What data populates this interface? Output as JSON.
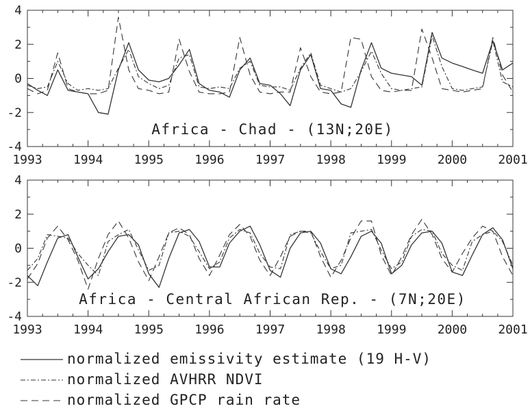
{
  "chart_data": [
    {
      "type": "line",
      "title": "Africa - Chad - (13N;20E)",
      "x_ticks": [
        1993,
        1994,
        1995,
        1996,
        1997,
        1998,
        1999,
        2000,
        2001
      ],
      "y_ticks": [
        -4,
        -2,
        0,
        2,
        4
      ],
      "xlim": [
        1993,
        2001
      ],
      "ylim": [
        -4,
        4
      ],
      "grid": false,
      "series": [
        {
          "name": "normalized emissivity estimate (19 H-V)",
          "style": "solid",
          "x": [
            1993.0,
            1993.17,
            1993.33,
            1993.5,
            1993.67,
            1993.83,
            1994.0,
            1994.17,
            1994.33,
            1994.5,
            1994.67,
            1994.83,
            1995.0,
            1995.17,
            1995.33,
            1995.5,
            1995.67,
            1995.83,
            1996.0,
            1996.17,
            1996.33,
            1996.5,
            1996.67,
            1996.83,
            1997.0,
            1997.17,
            1997.33,
            1997.5,
            1997.67,
            1997.83,
            1998.0,
            1998.17,
            1998.33,
            1998.5,
            1998.67,
            1998.83,
            1999.0,
            1999.17,
            1999.33,
            1999.5,
            1999.67,
            1999.83,
            2000.0,
            2000.17,
            2000.33,
            2000.5,
            2000.67,
            2000.83,
            2001.0
          ],
          "values": [
            -0.3,
            -0.7,
            -1.0,
            0.5,
            -0.7,
            -0.8,
            -0.9,
            -2.0,
            -2.1,
            0.5,
            2.1,
            0.5,
            -0.1,
            -0.2,
            0.0,
            0.8,
            1.7,
            -0.3,
            -0.7,
            -0.8,
            -1.1,
            0.5,
            1.2,
            -0.3,
            -0.4,
            -0.9,
            -1.6,
            0.5,
            1.4,
            -0.6,
            -0.7,
            -1.5,
            -1.7,
            0.5,
            2.1,
            0.6,
            0.3,
            0.2,
            0.1,
            -0.4,
            2.7,
            1.2,
            0.9,
            0.7,
            0.5,
            0.3,
            2.2,
            0.5,
            0.9
          ]
        },
        {
          "name": "normalized AVHRR NDVI",
          "style": "dashdot",
          "x": [
            1993.0,
            1993.17,
            1993.33,
            1993.5,
            1993.67,
            1993.83,
            1994.0,
            1994.17,
            1994.33,
            1994.5,
            1994.67,
            1994.83,
            1995.0,
            1995.17,
            1995.33,
            1995.5,
            1995.67,
            1995.83,
            1996.0,
            1996.17,
            1996.33,
            1996.5,
            1996.67,
            1996.83,
            1997.0,
            1997.17,
            1997.33,
            1997.5,
            1997.67,
            1997.83,
            1998.0,
            1998.17,
            1998.33,
            1998.5,
            1998.67,
            1998.83,
            1999.0,
            1999.17,
            1999.33,
            1999.5,
            1999.67,
            1999.83,
            2000.0,
            2000.17,
            2000.33,
            2000.5,
            2000.67,
            2000.83,
            2001.0
          ],
          "values": [
            -0.4,
            -0.6,
            -0.5,
            1.0,
            -0.3,
            -0.7,
            -0.6,
            -0.7,
            -0.6,
            0.6,
            1.7,
            0.1,
            -0.3,
            -0.6,
            -0.4,
            1.2,
            1.4,
            -0.5,
            -0.6,
            -0.5,
            -0.6,
            0.6,
            1.0,
            -0.4,
            -0.5,
            -0.5,
            -0.7,
            0.6,
            1.5,
            -0.4,
            -0.6,
            -0.8,
            -0.6,
            0.4,
            1.6,
            0.3,
            -0.6,
            -0.7,
            -0.6,
            -0.5,
            2.5,
            0.7,
            -0.6,
            -0.7,
            -0.6,
            -0.5,
            2.2,
            -0.2,
            -0.5
          ]
        },
        {
          "name": "normalized GPCP rain rate",
          "style": "dashed",
          "x": [
            1993.0,
            1993.17,
            1993.33,
            1993.5,
            1993.67,
            1993.83,
            1994.0,
            1994.17,
            1994.33,
            1994.5,
            1994.67,
            1994.83,
            1995.0,
            1995.17,
            1995.33,
            1995.5,
            1995.67,
            1995.83,
            1996.0,
            1996.17,
            1996.33,
            1996.5,
            1996.67,
            1996.83,
            1997.0,
            1997.17,
            1997.33,
            1997.5,
            1997.67,
            1997.83,
            1998.0,
            1998.17,
            1998.33,
            1998.5,
            1998.67,
            1998.83,
            1999.0,
            1999.17,
            1999.33,
            1999.5,
            1999.67,
            1999.83,
            2000.0,
            2000.17,
            2000.33,
            2000.5,
            2000.67,
            2000.83,
            2001.0
          ],
          "values": [
            -0.6,
            -0.9,
            -0.7,
            1.5,
            -0.6,
            -0.8,
            -0.9,
            -0.9,
            -0.7,
            3.6,
            0.5,
            -0.6,
            -0.7,
            -0.9,
            -0.8,
            2.3,
            0.4,
            -0.8,
            -0.9,
            -0.9,
            -0.8,
            2.4,
            0.2,
            -0.8,
            -0.9,
            -0.8,
            -0.8,
            1.8,
            0.1,
            -0.8,
            -0.9,
            -0.8,
            2.4,
            2.3,
            0.1,
            -0.7,
            -0.8,
            -0.7,
            -0.7,
            2.9,
            1.2,
            -0.6,
            -0.7,
            -0.8,
            -0.7,
            -0.6,
            2.4,
            0.2,
            -0.8
          ]
        }
      ]
    },
    {
      "type": "line",
      "title": "Africa - Central African Rep. - (7N;20E)",
      "x_ticks": [
        1993,
        1994,
        1995,
        1996,
        1997,
        1998,
        1999,
        2000,
        2001
      ],
      "y_ticks": [
        -4,
        -2,
        0,
        2,
        4
      ],
      "xlim": [
        1993,
        2001
      ],
      "ylim": [
        -4,
        4
      ],
      "grid": false,
      "series": [
        {
          "name": "normalized emissivity estimate (19 H-V)",
          "style": "solid",
          "x": [
            1993.0,
            1993.17,
            1993.33,
            1993.5,
            1993.67,
            1993.83,
            1994.0,
            1994.17,
            1994.33,
            1994.5,
            1994.67,
            1994.83,
            1995.0,
            1995.17,
            1995.33,
            1995.5,
            1995.67,
            1995.83,
            1996.0,
            1996.17,
            1996.33,
            1996.5,
            1996.67,
            1996.83,
            1997.0,
            1997.17,
            1997.33,
            1997.5,
            1997.67,
            1997.83,
            1998.0,
            1998.17,
            1998.33,
            1998.5,
            1998.67,
            1998.83,
            1999.0,
            1999.17,
            1999.33,
            1999.5,
            1999.67,
            1999.83,
            2000.0,
            2000.17,
            2000.33,
            2000.5,
            2000.67,
            2000.83,
            2001.0
          ],
          "values": [
            -1.6,
            -2.2,
            -0.8,
            0.6,
            0.8,
            -0.5,
            -1.8,
            -1.2,
            -0.2,
            0.7,
            0.8,
            0.2,
            -1.5,
            -2.3,
            -0.6,
            0.9,
            1.1,
            0.4,
            -1.1,
            -1.1,
            0.3,
            1.0,
            1.3,
            0.2,
            -1.3,
            -1.7,
            0.0,
            0.9,
            1.0,
            0.3,
            -1.2,
            -1.5,
            -0.5,
            0.7,
            1.0,
            0.3,
            -1.5,
            -1.0,
            0.2,
            0.9,
            1.0,
            0.3,
            -1.4,
            -1.6,
            -0.4,
            0.8,
            1.2,
            0.5,
            -1.2
          ]
        },
        {
          "name": "normalized AVHRR NDVI",
          "style": "dashdot",
          "x": [
            1993.0,
            1993.17,
            1993.33,
            1993.5,
            1993.67,
            1993.83,
            1994.0,
            1994.17,
            1994.33,
            1994.5,
            1994.67,
            1994.83,
            1995.0,
            1995.17,
            1995.33,
            1995.5,
            1995.67,
            1995.83,
            1996.0,
            1996.17,
            1996.33,
            1996.5,
            1996.67,
            1996.83,
            1997.0,
            1997.17,
            1997.33,
            1997.5,
            1997.67,
            1997.83,
            1998.0,
            1998.17,
            1998.33,
            1998.5,
            1998.67,
            1998.83,
            1999.0,
            1999.17,
            1999.33,
            1999.5,
            1999.67,
            1999.83,
            2000.0,
            2000.17,
            2000.33,
            2000.5,
            2000.67,
            2000.83,
            2001.0
          ],
          "values": [
            -1.3,
            -0.6,
            0.8,
            0.7,
            0.6,
            -0.3,
            -1.0,
            -1.6,
            0.4,
            0.8,
            1.1,
            -0.1,
            -1.3,
            -1.0,
            0.9,
            1.0,
            0.7,
            -0.2,
            -1.2,
            -0.8,
            0.6,
            1.1,
            0.9,
            -0.3,
            -1.1,
            -1.2,
            0.8,
            1.0,
            0.9,
            -0.2,
            -1.2,
            -1.0,
            0.9,
            1.0,
            1.1,
            -0.1,
            -1.2,
            -0.8,
            0.7,
            1.1,
            1.0,
            -0.3,
            -1.0,
            -1.3,
            0.4,
            0.8,
            1.0,
            0.4,
            -1.0
          ]
        },
        {
          "name": "normalized GPCP rain rate",
          "style": "dashed",
          "x": [
            1993.0,
            1993.17,
            1993.33,
            1993.5,
            1993.67,
            1993.83,
            1994.0,
            1994.17,
            1994.33,
            1994.5,
            1994.67,
            1994.83,
            1995.0,
            1995.17,
            1995.33,
            1995.5,
            1995.67,
            1995.83,
            1996.0,
            1996.17,
            1996.33,
            1996.5,
            1996.67,
            1996.83,
            1997.0,
            1997.17,
            1997.33,
            1997.5,
            1997.67,
            1997.83,
            1998.0,
            1998.17,
            1998.33,
            1998.5,
            1998.67,
            1998.83,
            1999.0,
            1999.17,
            1999.33,
            1999.5,
            1999.67,
            1999.83,
            2000.0,
            2000.17,
            2000.33,
            2000.5,
            2000.67,
            2000.83,
            2001.0
          ],
          "values": [
            -1.8,
            -0.9,
            0.6,
            1.3,
            0.5,
            -0.7,
            -2.4,
            -0.6,
            0.8,
            1.6,
            0.6,
            -0.8,
            -1.9,
            -0.5,
            0.9,
            1.2,
            0.8,
            -0.6,
            -1.6,
            -0.4,
            0.8,
            1.4,
            0.7,
            -0.7,
            -1.6,
            -0.5,
            0.7,
            1.0,
            1.0,
            -0.5,
            -1.7,
            -0.7,
            0.6,
            1.6,
            1.6,
            -0.4,
            -1.6,
            -0.5,
            0.8,
            1.7,
            0.8,
            -0.6,
            -1.4,
            -0.3,
            0.6,
            1.3,
            1.0,
            -0.5,
            -1.6
          ]
        }
      ]
    }
  ],
  "legend": {
    "items": [
      {
        "label": "normalized emissivity estimate (19 H-V)",
        "style": "solid"
      },
      {
        "label": "normalized AVHRR NDVI",
        "style": "dashdot"
      },
      {
        "label": "normalized GPCP rain rate",
        "style": "dashed"
      }
    ]
  }
}
